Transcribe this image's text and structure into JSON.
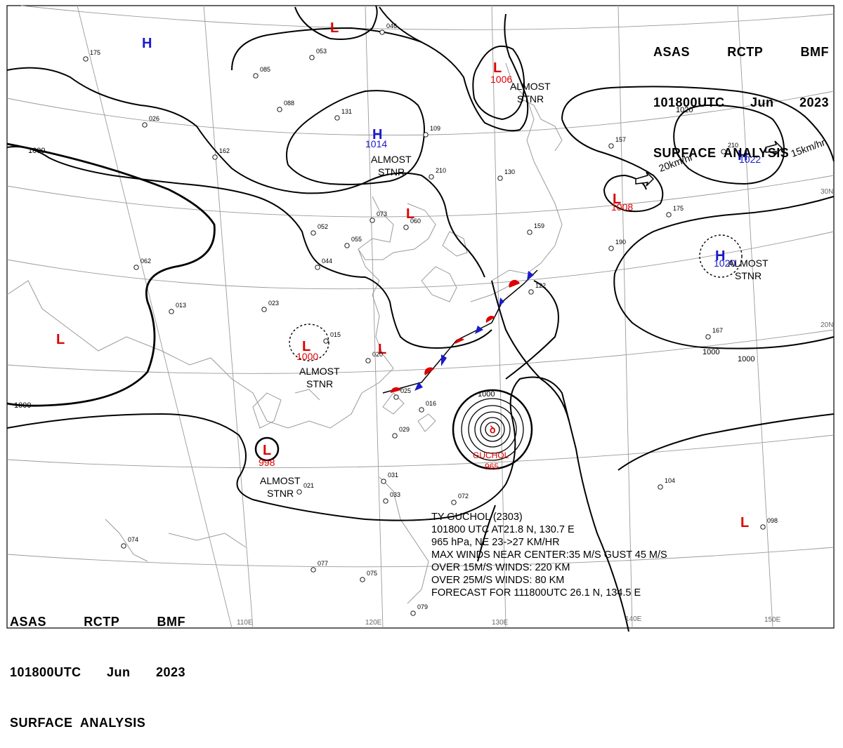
{
  "header": {
    "line1": [
      "ASAS",
      "RCTP",
      "BMF"
    ],
    "line2": [
      "101800UTC",
      "Jun",
      "2023"
    ],
    "line3": "SURFACE  ANALYSIS"
  },
  "typhoon": {
    "name_label": "GUCHOL",
    "pressure_label": "965",
    "lines": [
      "TY  GUCHOL  (2303)",
      "101800 UTC   AT21.8 N, 130.7 E",
      "965 hPa, NE  23->27 KM/HR",
      "MAX WINDS NEAR CENTER:35 M/S GUST 45 M/S",
      "OVER 15M/S WINDS: 220 KM",
      "OVER 25M/S WINDS: 80 KM",
      "FORECAST FOR 111800UTC 26.1 N, 134.5 E"
    ]
  },
  "pressure_systems": [
    {
      "type": "H",
      "value": "",
      "note": "",
      "color": "#1a1acc"
    },
    {
      "type": "L",
      "value": "",
      "note": "",
      "color": "#dd0000"
    },
    {
      "type": "L",
      "value": "1006",
      "note": "ALMOST STNR",
      "color": "#dd0000"
    },
    {
      "type": "H",
      "value": "1014",
      "note": "ALMOST STNR",
      "color": "#1a1acc"
    },
    {
      "type": "H",
      "value": "1022",
      "note": "15km/hr",
      "color": "#1a1acc"
    },
    {
      "type": "L",
      "value": "1008",
      "note": "20km/hr",
      "color": "#dd0000"
    },
    {
      "type": "L",
      "value": "",
      "note": "",
      "color": "#dd0000"
    },
    {
      "type": "H",
      "value": "1020",
      "note": "ALMOST STNR",
      "color": "#1a1acc"
    },
    {
      "type": "L",
      "value": "",
      "note": "",
      "color": "#dd0000"
    },
    {
      "type": "L",
      "value": "1000",
      "note": "ALMOST STNR",
      "color": "#dd0000"
    },
    {
      "type": "L",
      "value": "",
      "note": "",
      "color": "#dd0000"
    },
    {
      "type": "L",
      "value": "998",
      "note": "ALMOST STNR",
      "color": "#dd0000"
    },
    {
      "type": "L",
      "value": "",
      "note": "",
      "color": "#dd0000"
    }
  ],
  "isobar_labels": [
    "1000",
    "1000",
    "1020",
    "1000",
    "1000",
    "1000"
  ],
  "latitude_labels": [
    "30N",
    "20N"
  ],
  "longitude_labels": [
    "110E",
    "120E",
    "130E",
    "140E",
    "150E"
  ],
  "station_numbers": [
    "175",
    "053",
    "046",
    "085",
    "088",
    "131",
    "109",
    "162",
    "026",
    "073",
    "060",
    "052",
    "055",
    "044",
    "013",
    "023",
    "015",
    "020",
    "025",
    "016",
    "029",
    "062",
    "021",
    "031",
    "033",
    "072",
    "075",
    "077",
    "079",
    "074",
    "098",
    "104",
    "167",
    "175",
    "190",
    "157",
    "210",
    "122",
    "130",
    "159",
    "210"
  ],
  "colors": {
    "low": "#dd0000",
    "high": "#1a1acc",
    "cold_front": "#1a1acc",
    "warm_front": "#dd0000"
  }
}
